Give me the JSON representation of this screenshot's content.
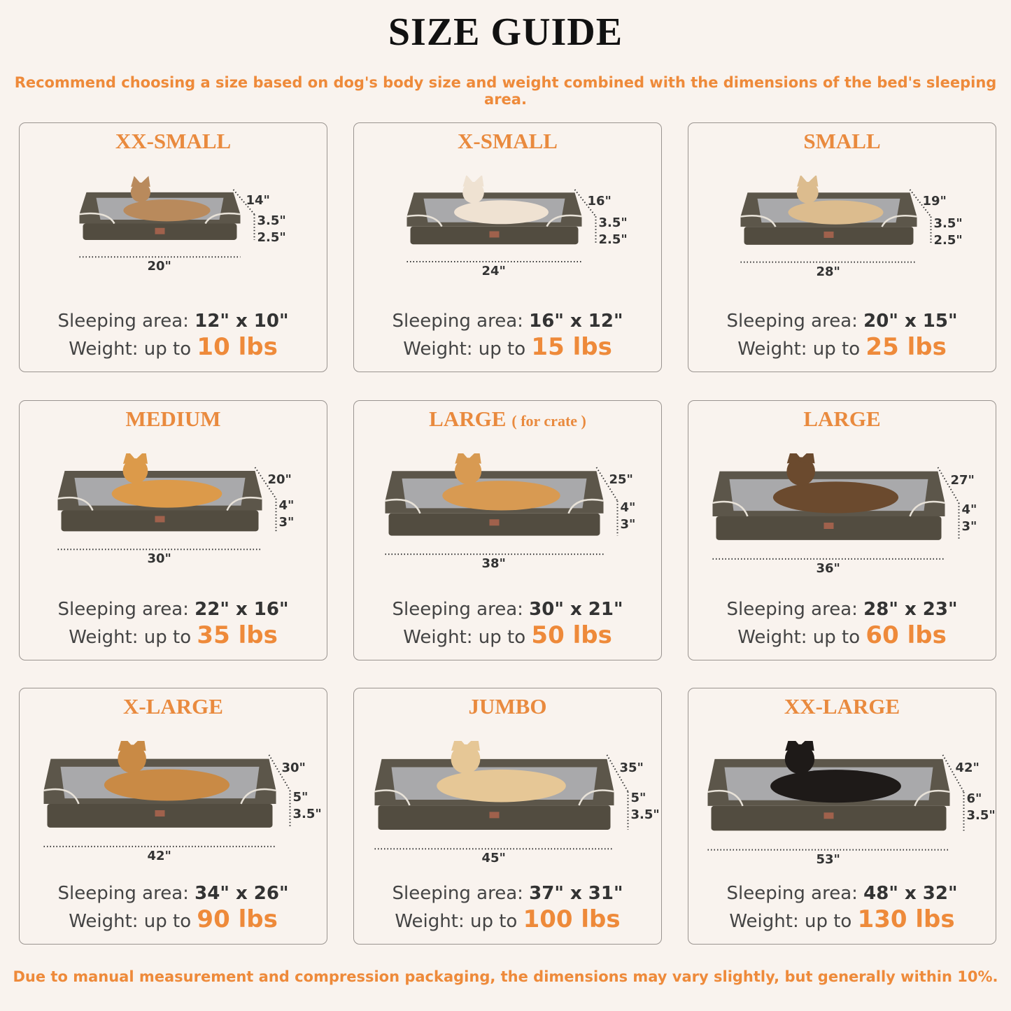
{
  "header": {
    "title": "SIZE GUIDE",
    "subtitle": "Recommend choosing a size based on dog's body size and weight combined with the dimensions of the bed's sleeping area."
  },
  "footer": {
    "note": "Due to manual measurement and compression packaging, the dimensions may vary slightly, but generally within 10%."
  },
  "colors": {
    "accent": "#ee8a3a",
    "bed": "#5a5448",
    "cushion": "#a9a9ab",
    "background": "#f9f3ee"
  },
  "labels": {
    "sleeping_prefix": "Sleeping area:",
    "weight_prefix": "Weight: up to"
  },
  "cards": [
    {
      "title": "XX-SMALL",
      "note": "",
      "depth": "14\"",
      "wall": "3.5\"",
      "base": "2.5\"",
      "width": "20\"",
      "sleeping": "12\" x 10\"",
      "weight": "10 lbs",
      "pet": "cat-icon",
      "pet_color": "#b98a5c"
    },
    {
      "title": "X-SMALL",
      "note": "",
      "depth": "16\"",
      "wall": "3.5\"",
      "base": "2.5\"",
      "width": "24\"",
      "sleeping": "16\" x 12\"",
      "weight": "15 lbs",
      "pet": "dog-icon",
      "pet_color": "#efe2d2"
    },
    {
      "title": "SMALL",
      "note": "",
      "depth": "19\"",
      "wall": "3.5\"",
      "base": "2.5\"",
      "width": "28\"",
      "sleeping": "20\" x 15\"",
      "weight": "25 lbs",
      "pet": "dog-icon",
      "pet_color": "#dcbc8e"
    },
    {
      "title": "MEDIUM",
      "note": "",
      "depth": "20\"",
      "wall": "4\"",
      "base": "3\"",
      "width": "30\"",
      "sleeping": "22\" x 16\"",
      "weight": "35 lbs",
      "pet": "dog-icon",
      "pet_color": "#dc9a4a"
    },
    {
      "title": "LARGE",
      "note": "( for crate )",
      "depth": "25\"",
      "wall": "4\"",
      "base": "3\"",
      "width": "38\"",
      "sleeping": "30\" x 21\"",
      "weight": "50 lbs",
      "pet": "dog-icon",
      "pet_color": "#d89a52"
    },
    {
      "title": "LARGE",
      "note": "",
      "depth": "27\"",
      "wall": "4\"",
      "base": "3\"",
      "width": "36\"",
      "sleeping": "28\" x 23\"",
      "weight": "60 lbs",
      "pet": "dog-icon",
      "pet_color": "#6b4a2e"
    },
    {
      "title": "X-LARGE",
      "note": "",
      "depth": "30\"",
      "wall": "5\"",
      "base": "3.5\"",
      "width": "42\"",
      "sleeping": "34\" x 26\"",
      "weight": "90 lbs",
      "pet": "dog-icon",
      "pet_color": "#c98a45"
    },
    {
      "title": "JUMBO",
      "note": "",
      "depth": "35\"",
      "wall": "5\"",
      "base": "3.5\"",
      "width": "45\"",
      "sleeping": "37\" x 31\"",
      "weight": "100 lbs",
      "pet": "dog-icon",
      "pet_color": "#e6c796"
    },
    {
      "title": "XX-LARGE",
      "note": "",
      "depth": "42\"",
      "wall": "6\"",
      "base": "3.5\"",
      "width": "53\"",
      "sleeping": "48\" x 32\"",
      "weight": "130 lbs",
      "pet": "dog-icon",
      "pet_color": "#1e1a18"
    }
  ]
}
